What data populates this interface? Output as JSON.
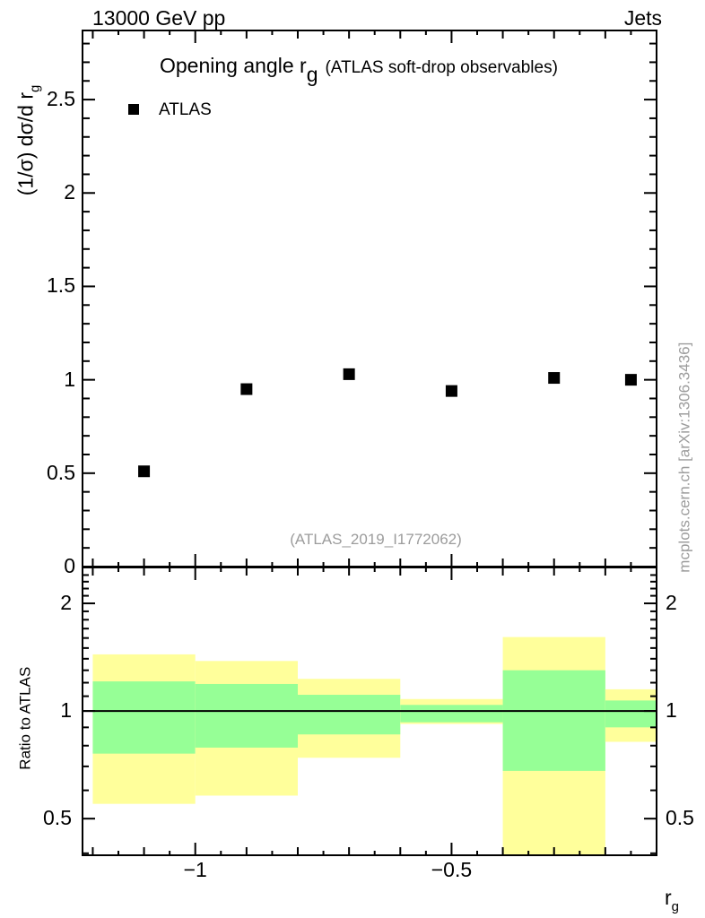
{
  "header": {
    "beam": "13000 GeV pp",
    "analysis": "Jets"
  },
  "main_panel": {
    "title_main": "Opening angle r",
    "title_sub": "g",
    "title_paren": "(ATLAS soft-drop observables)",
    "ylabel_main": "(1/σ) dσ/d r",
    "ylabel_sub": "g",
    "legend": {
      "label": "ATLAS",
      "marker_color": "#000000"
    },
    "watermark": "(ATLAS_2019_I1772062)",
    "sidenote": "mcplots.cern.ch [arXiv:1306.3436]"
  },
  "ratio_panel": {
    "ylabel": "Ratio to ATLAS"
  },
  "xaxis": {
    "label_main": "r",
    "label_sub": "g"
  },
  "colors": {
    "band_outer": "#ffff9b",
    "band_inner": "#96ff96",
    "marker": "#000000",
    "frame": "#000000",
    "gray_text": "#9c9c9c"
  },
  "chart_data": [
    {
      "type": "scatter",
      "title": "Opening angle r_g (ATLAS soft-drop observables)",
      "xlabel": "r_g",
      "ylabel": "(1/σ) dσ/d r_g",
      "xlim": [
        -1.22,
        -0.1
      ],
      "ylim": [
        0,
        2.87
      ],
      "grid": false,
      "legend_position": "top-left",
      "x_ticks": [
        {
          "value": -1,
          "label": "−1"
        },
        {
          "value": -0.5,
          "label": "−0.5"
        }
      ],
      "x_minor_step": 0.05,
      "y_ticks": [
        {
          "value": 0,
          "label": "0",
          "clip": true
        },
        {
          "value": 0.5,
          "label": "0.5"
        },
        {
          "value": 1,
          "label": "1"
        },
        {
          "value": 1.5,
          "label": "1.5"
        },
        {
          "value": 2,
          "label": "2"
        },
        {
          "value": 2.5,
          "label": "2.5"
        }
      ],
      "y_minor_step": 0.1,
      "series": [
        {
          "name": "ATLAS",
          "marker": "filled-square",
          "color": "#000000",
          "x": [
            -1.1,
            -0.9,
            -0.7,
            -0.5,
            -0.3,
            -0.15
          ],
          "y": [
            0.51,
            0.95,
            1.03,
            0.94,
            1.01,
            1.0
          ]
        }
      ]
    },
    {
      "type": "area",
      "ylabel": "Ratio to ATLAS",
      "yscale": "log",
      "xlim": [
        -1.22,
        -0.1
      ],
      "ylim": [
        0.395,
        2.52
      ],
      "reference_line_y": 1,
      "y_ticks": [
        {
          "value": 0.5,
          "label": "0.5"
        },
        {
          "value": 1,
          "label": "1"
        },
        {
          "value": 2,
          "label": "2"
        }
      ],
      "y_minor_ticks": [
        0.4,
        0.6,
        0.7,
        0.8,
        0.9,
        1.1,
        1.2,
        1.3,
        1.4,
        1.5,
        1.6,
        1.7,
        1.8,
        1.9,
        2.1,
        2.2,
        2.3,
        2.4,
        2.5
      ],
      "bands": [
        {
          "x0": -1.2,
          "x1": -1.0,
          "outer_lo": 0.55,
          "outer_hi": 1.44,
          "inner_lo": 0.76,
          "inner_hi": 1.21
        },
        {
          "x0": -1.0,
          "x1": -0.8,
          "outer_lo": 0.58,
          "outer_hi": 1.38,
          "inner_lo": 0.79,
          "inner_hi": 1.19
        },
        {
          "x0": -0.8,
          "x1": -0.6,
          "outer_lo": 0.74,
          "outer_hi": 1.23,
          "inner_lo": 0.86,
          "inner_hi": 1.11
        },
        {
          "x0": -0.6,
          "x1": -0.4,
          "outer_lo": 0.92,
          "outer_hi": 1.08,
          "inner_lo": 0.93,
          "inner_hi": 1.04
        },
        {
          "x0": -0.4,
          "x1": -0.2,
          "outer_lo": 0.39,
          "outer_hi": 1.61,
          "inner_lo": 0.68,
          "inner_hi": 1.3
        },
        {
          "x0": -0.2,
          "x1": -0.1,
          "outer_lo": 0.82,
          "outer_hi": 1.15,
          "inner_lo": 0.9,
          "inner_hi": 1.07
        }
      ]
    }
  ]
}
